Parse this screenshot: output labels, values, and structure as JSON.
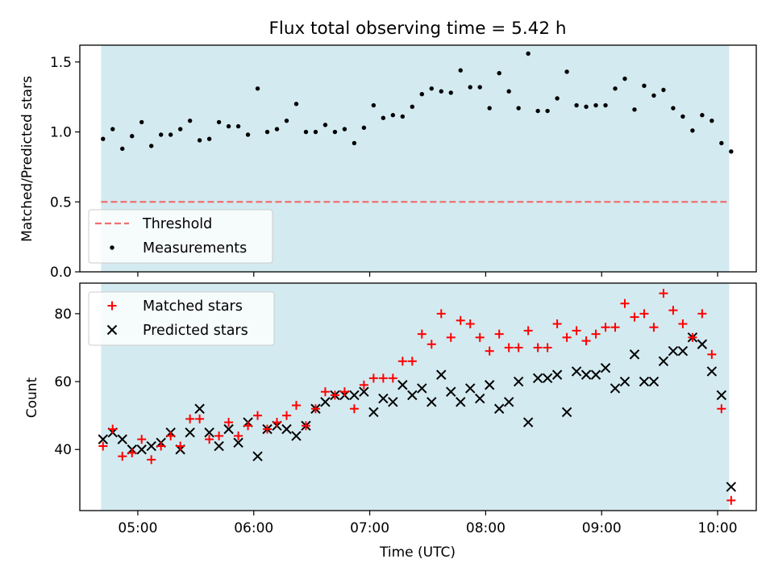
{
  "title": "Flux total observing time = 5.42 h",
  "colors": {
    "observing_span": "#d3eaf0",
    "threshold": "#f07070",
    "measurements": "#000000",
    "matched": "#ff0000",
    "predicted": "#000000"
  },
  "chart_data": [
    {
      "type": "scatter",
      "panel": "top",
      "ylabel": "Matched/Predicted stars",
      "ylim": [
        0,
        1.62
      ],
      "yticks": [
        "0.0",
        "0.5",
        "1.0",
        "1.5"
      ],
      "yticks_values": [
        0,
        0.5,
        1.0,
        1.5
      ],
      "xlim": [
        "04:30",
        "10:20"
      ],
      "observing_span": [
        "04:41",
        "10:06"
      ],
      "legend_position": "lower-left",
      "threshold": {
        "name": "Threshold",
        "value": 0.5
      },
      "series": [
        {
          "name": "Measurements",
          "x": [
            "04:42",
            "04:47",
            "04:52",
            "04:57",
            "05:02",
            "05:07",
            "05:12",
            "05:17",
            "05:22",
            "05:27",
            "05:32",
            "05:37",
            "05:42",
            "05:47",
            "05:52",
            "05:57",
            "06:02",
            "06:07",
            "06:12",
            "06:17",
            "06:22",
            "06:27",
            "06:32",
            "06:37",
            "06:42",
            "06:47",
            "06:52",
            "06:57",
            "07:02",
            "07:07",
            "07:12",
            "07:17",
            "07:22",
            "07:27",
            "07:32",
            "07:37",
            "07:42",
            "07:47",
            "07:52",
            "07:57",
            "08:02",
            "08:07",
            "08:12",
            "08:17",
            "08:22",
            "08:27",
            "08:32",
            "08:37",
            "08:42",
            "08:47",
            "08:52",
            "08:57",
            "09:02",
            "09:07",
            "09:12",
            "09:17",
            "09:22",
            "09:27",
            "09:32",
            "09:37",
            "09:42",
            "09:47",
            "09:52",
            "09:57",
            "10:02",
            "10:07"
          ],
          "y": [
            0.95,
            1.02,
            0.88,
            0.97,
            1.07,
            0.9,
            0.98,
            0.98,
            1.02,
            1.08,
            0.94,
            0.95,
            1.07,
            1.04,
            1.04,
            0.98,
            1.31,
            1.0,
            1.02,
            1.08,
            1.2,
            1.0,
            1.0,
            1.05,
            1.0,
            1.02,
            0.92,
            1.03,
            1.19,
            1.1,
            1.12,
            1.11,
            1.18,
            1.27,
            1.31,
            1.29,
            1.28,
            1.44,
            1.32,
            1.32,
            1.17,
            1.42,
            1.29,
            1.17,
            1.56,
            1.15,
            1.15,
            1.24,
            1.43,
            1.19,
            1.18,
            1.19,
            1.19,
            1.31,
            1.38,
            1.16,
            1.33,
            1.26,
            1.3,
            1.17,
            1.11,
            1.01,
            1.12,
            1.08,
            0.92,
            0.86
          ]
        }
      ]
    },
    {
      "type": "scatter",
      "panel": "bottom",
      "ylabel": "Count",
      "xlabel": "Time (UTC)",
      "ylim": [
        22,
        89
      ],
      "yticks": [
        "40",
        "60",
        "80"
      ],
      "yticks_values": [
        40,
        60,
        80
      ],
      "xlim": [
        "04:30",
        "10:20"
      ],
      "xticks": [
        "05:00",
        "06:00",
        "07:00",
        "08:00",
        "09:00",
        "10:00"
      ],
      "observing_span": [
        "04:41",
        "10:06"
      ],
      "legend_position": "upper-left",
      "series": [
        {
          "name": "Matched stars",
          "x": [
            "04:42",
            "04:47",
            "04:52",
            "04:57",
            "05:02",
            "05:07",
            "05:12",
            "05:17",
            "05:22",
            "05:27",
            "05:32",
            "05:37",
            "05:42",
            "05:47",
            "05:52",
            "05:57",
            "06:02",
            "06:07",
            "06:12",
            "06:17",
            "06:22",
            "06:27",
            "06:32",
            "06:37",
            "06:42",
            "06:47",
            "06:52",
            "06:57",
            "07:02",
            "07:07",
            "07:12",
            "07:17",
            "07:22",
            "07:27",
            "07:32",
            "07:37",
            "07:42",
            "07:47",
            "07:52",
            "07:57",
            "08:02",
            "08:07",
            "08:12",
            "08:17",
            "08:22",
            "08:27",
            "08:32",
            "08:37",
            "08:42",
            "08:47",
            "08:52",
            "08:57",
            "09:02",
            "09:07",
            "09:12",
            "09:17",
            "09:22",
            "09:27",
            "09:32",
            "09:37",
            "09:42",
            "09:47",
            "09:52",
            "09:57",
            "10:02",
            "10:07"
          ],
          "y": [
            41,
            46,
            38,
            39,
            43,
            37,
            41,
            44,
            41,
            49,
            49,
            43,
            44,
            48,
            44,
            47,
            50,
            46,
            48,
            50,
            53,
            47,
            52,
            57,
            56,
            57,
            52,
            59,
            61,
            61,
            61,
            66,
            66,
            74,
            71,
            80,
            73,
            78,
            77,
            73,
            69,
            74,
            70,
            70,
            75,
            70,
            70,
            77,
            73,
            75,
            72,
            74,
            76,
            76,
            83,
            79,
            80,
            76,
            86,
            81,
            77,
            73,
            80,
            68,
            52,
            25
          ]
        },
        {
          "name": "Predicted stars",
          "x": [
            "04:42",
            "04:47",
            "04:52",
            "04:57",
            "05:02",
            "05:07",
            "05:12",
            "05:17",
            "05:22",
            "05:27",
            "05:32",
            "05:37",
            "05:42",
            "05:47",
            "05:52",
            "05:57",
            "06:02",
            "06:07",
            "06:12",
            "06:17",
            "06:22",
            "06:27",
            "06:32",
            "06:37",
            "06:42",
            "06:47",
            "06:52",
            "06:57",
            "07:02",
            "07:07",
            "07:12",
            "07:17",
            "07:22",
            "07:27",
            "07:32",
            "07:37",
            "07:42",
            "07:47",
            "07:52",
            "07:57",
            "08:02",
            "08:07",
            "08:12",
            "08:17",
            "08:22",
            "08:27",
            "08:32",
            "08:37",
            "08:42",
            "08:47",
            "08:52",
            "08:57",
            "09:02",
            "09:07",
            "09:12",
            "09:17",
            "09:22",
            "09:27",
            "09:32",
            "09:37",
            "09:42",
            "09:47",
            "09:52",
            "09:57",
            "10:02",
            "10:07"
          ],
          "y": [
            43,
            45,
            43,
            40,
            40,
            41,
            42,
            45,
            40,
            45,
            52,
            45,
            41,
            46,
            42,
            48,
            38,
            46,
            47,
            46,
            44,
            47,
            52,
            54,
            56,
            56,
            56,
            57,
            51,
            55,
            54,
            59,
            56,
            58,
            54,
            62,
            57,
            54,
            58,
            55,
            59,
            52,
            54,
            60,
            48,
            61,
            61,
            62,
            51,
            63,
            62,
            62,
            64,
            58,
            60,
            68,
            60,
            60,
            66,
            69,
            69,
            73,
            71,
            63,
            56,
            29
          ]
        }
      ]
    }
  ]
}
